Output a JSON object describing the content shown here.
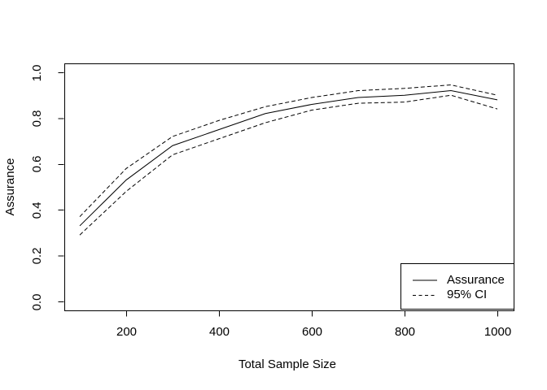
{
  "figure": {
    "background": "#ffffff",
    "line_color": "#000000",
    "legend": {
      "items": [
        {
          "label": "Assurance",
          "line_style": "solid"
        },
        {
          "label": "95% CI",
          "line_style": "dashed"
        }
      ]
    }
  },
  "chart_data": {
    "type": "line",
    "title": "",
    "xlabel": "Total Sample Size",
    "ylabel": "Assurance",
    "xlim": [
      64,
      1036
    ],
    "ylim": [
      -0.04,
      1.04
    ],
    "grid": false,
    "legend_position": "bottom-right",
    "x_ticks": {
      "values": [
        200,
        400,
        600,
        800,
        1000
      ],
      "labels": [
        "200",
        "400",
        "600",
        "800",
        "1000"
      ]
    },
    "y_ticks": {
      "values": [
        0,
        0.2,
        0.4,
        0.6,
        0.8,
        1.0
      ],
      "labels": [
        "0.0",
        "0.2",
        "0.4",
        "0.6",
        "0.8",
        "1.0"
      ]
    },
    "x": [
      100,
      200,
      300,
      400,
      500,
      600,
      700,
      800,
      900,
      1000
    ],
    "series": [
      {
        "name": "Assurance",
        "style": "solid",
        "values": [
          0.33,
          0.53,
          0.68,
          0.75,
          0.82,
          0.86,
          0.89,
          0.9,
          0.92,
          0.88
        ]
      },
      {
        "name": "95% CI upper",
        "style": "dashed",
        "values": [
          0.37,
          0.58,
          0.72,
          0.79,
          0.85,
          0.89,
          0.92,
          0.93,
          0.945,
          0.9
        ]
      },
      {
        "name": "95% CI lower",
        "style": "dashed",
        "values": [
          0.29,
          0.48,
          0.64,
          0.71,
          0.78,
          0.835,
          0.865,
          0.87,
          0.9,
          0.84
        ]
      }
    ]
  }
}
